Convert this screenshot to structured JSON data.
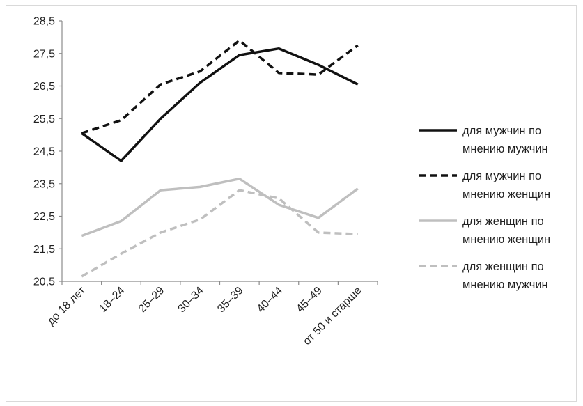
{
  "chart_data": {
    "type": "line",
    "categories": [
      "до 18 лет",
      "18–24",
      "25–29",
      "30–34",
      "35–39",
      "40–44",
      "45–49",
      "от 50 и старше"
    ],
    "y_ticks": [
      "28,5",
      "27,5",
      "26,5",
      "25,5",
      "24,5",
      "23,5",
      "22,5",
      "21,5",
      "20,5"
    ],
    "ylim": [
      20.5,
      28.5
    ],
    "grid": false,
    "legend_position": "right",
    "series": [
      {
        "name_line1": "для мужчин по",
        "name_line2": "мнению мужчин",
        "color": "#111111",
        "dash": "solid",
        "values": [
          25.05,
          24.2,
          25.5,
          26.6,
          27.45,
          27.65,
          27.15,
          26.55
        ]
      },
      {
        "name_line1": "для мужчин по",
        "name_line2": "мнению женщин",
        "color": "#111111",
        "dash": "dashed",
        "values": [
          25.05,
          25.45,
          26.55,
          26.95,
          27.9,
          26.9,
          26.85,
          27.75
        ]
      },
      {
        "name_line1": "для женщин по",
        "name_line2": "мнению женщин",
        "color": "#bfbfbf",
        "dash": "solid",
        "values": [
          21.9,
          22.35,
          23.3,
          23.4,
          23.65,
          22.85,
          22.45,
          23.35
        ]
      },
      {
        "name_line1": "для женщин по",
        "name_line2": "мнению мужчин",
        "color": "#bfbfbf",
        "dash": "dashed",
        "values": [
          20.65,
          21.35,
          22.0,
          22.4,
          23.3,
          23.05,
          22.0,
          21.95
        ]
      }
    ]
  }
}
